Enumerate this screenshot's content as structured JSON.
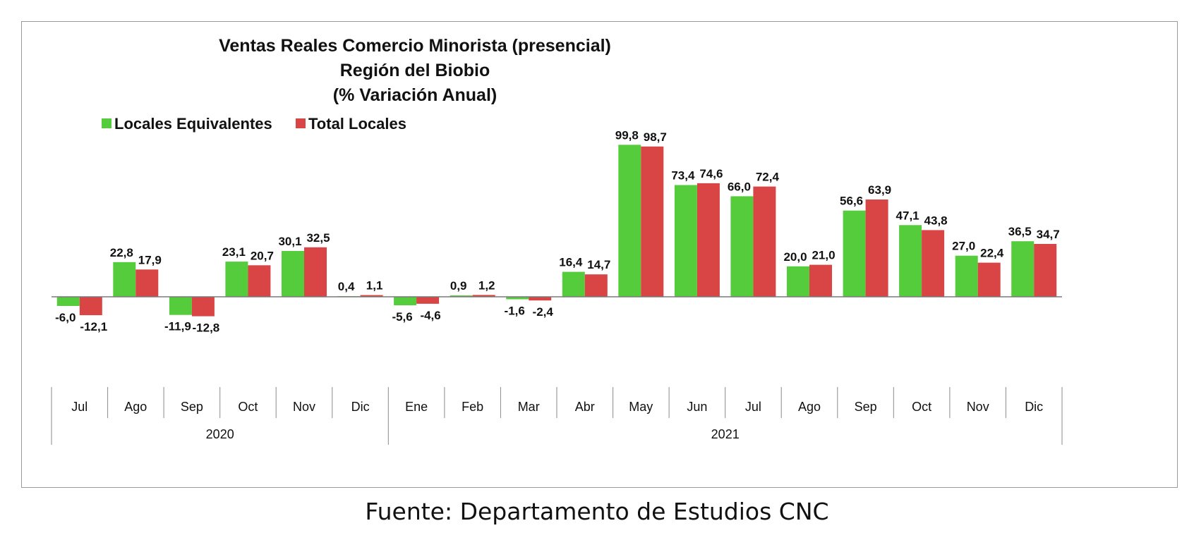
{
  "chart_data": {
    "type": "bar",
    "title": [
      "Ventas Reales Comercio Minorista (presencial)",
      "Región del Biobio",
      "(% Variación Anual)"
    ],
    "categories": [
      "Jul",
      "Ago",
      "Sep",
      "Oct",
      "Nov",
      "Dic",
      "Ene",
      "Feb",
      "Mar",
      "Abr",
      "May",
      "Jun",
      "Jul",
      "Ago",
      "Sep",
      "Oct",
      "Nov",
      "Dic"
    ],
    "groups": [
      {
        "label": "2020",
        "start": 0,
        "count": 6
      },
      {
        "label": "2021",
        "start": 6,
        "count": 12
      }
    ],
    "series": [
      {
        "name": "Locales Equivalentes",
        "color": "#55cc3c",
        "values": [
          -6.0,
          22.8,
          -11.9,
          23.1,
          30.1,
          0.4,
          -5.6,
          0.9,
          -1.6,
          16.4,
          99.8,
          73.4,
          66.0,
          20.0,
          56.6,
          47.1,
          27.0,
          36.5
        ],
        "labels": [
          "-6,0",
          "22,8",
          "-11,9",
          "23,1",
          "30,1",
          "0,4",
          "-5,6",
          "0,9",
          "-1,6",
          "16,4",
          "99,8",
          "73,4",
          "66,0",
          "20,0",
          "56,6",
          "47,1",
          "27,0",
          "36,5"
        ]
      },
      {
        "name": "Total Locales",
        "color": "#d94545",
        "values": [
          -12.1,
          17.9,
          -12.8,
          20.7,
          32.5,
          1.1,
          -4.6,
          1.2,
          -2.4,
          14.7,
          98.7,
          74.6,
          72.4,
          21.0,
          63.9,
          43.8,
          22.4,
          34.7
        ],
        "labels": [
          "-12,1",
          "17,9",
          "-12,8",
          "20,7",
          "32,5",
          "1,1",
          "-4,6",
          "1,2",
          "-2,4",
          "14,7",
          "98,7",
          "74,6",
          "72,4",
          "21,0",
          "63,9",
          "43,8",
          "22,4",
          "34,7"
        ]
      }
    ],
    "xlabel": "",
    "ylabel": "",
    "ylim": [
      -60,
      110
    ],
    "grid": false,
    "legend_position": "top-left"
  },
  "source": "Fuente: Departamento de Estudios CNC"
}
